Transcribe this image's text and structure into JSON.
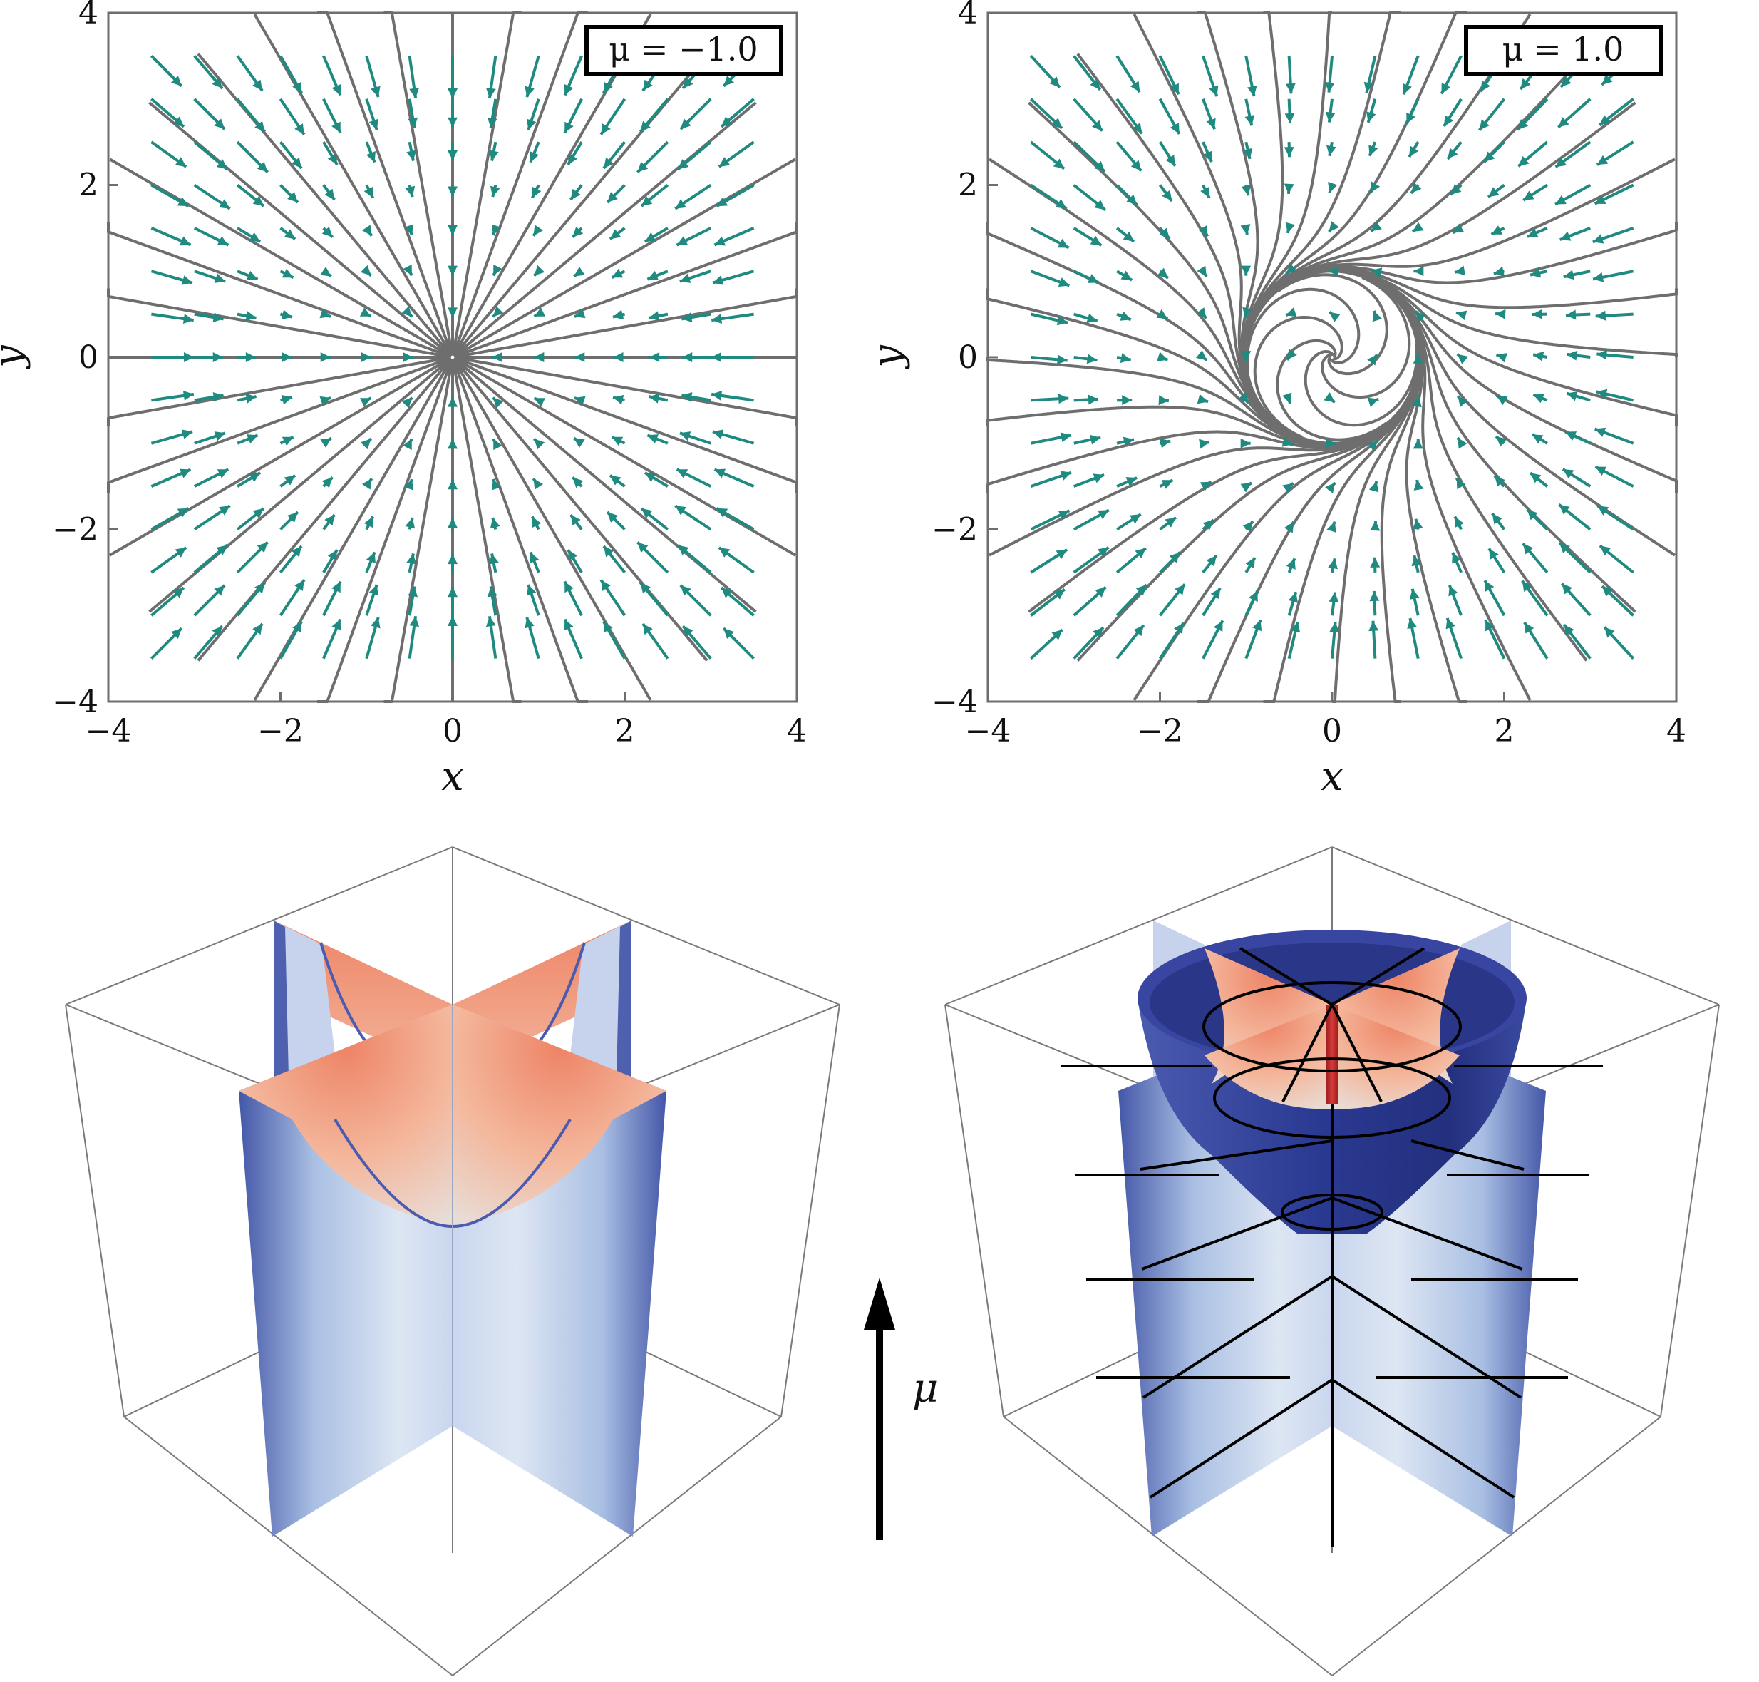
{
  "panels": [
    {
      "mu_label": "μ = −1.0",
      "mu": -1.0
    },
    {
      "mu_label": "μ = 1.0",
      "mu": 1.0
    }
  ],
  "axes": {
    "xlabel": "x",
    "ylabel": "y",
    "xlim": [
      -4,
      4
    ],
    "ylim": [
      -4,
      4
    ],
    "ticks": [
      -4,
      -2,
      0,
      2,
      4
    ],
    "tick_labels": [
      "−4",
      "−2",
      "0",
      "2",
      "4"
    ]
  },
  "arrow_label": "μ",
  "colors": {
    "streamline": "#6e6e6e",
    "arrow": "#1f8a80",
    "surface_warm": "#ef8a6e",
    "surface_cool": "#4457a8",
    "cone": "#2f3b91",
    "axis_rod": "#c62828"
  }
}
